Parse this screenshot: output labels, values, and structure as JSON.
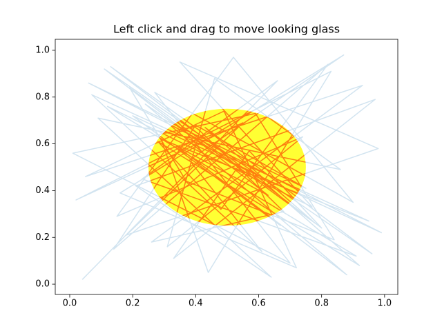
{
  "chart_data": {
    "type": "line",
    "title": "Left click and drag to move looking glass",
    "xlim": [
      -0.046,
      1.042
    ],
    "ylim": [
      -0.044,
      1.047
    ],
    "xticks": [
      {
        "value": 0,
        "label": "0.0"
      },
      0.2,
      0.4,
      0.6,
      0.8,
      {
        "value": 1,
        "label": "1.0"
      }
    ],
    "yticks": [
      {
        "value": 0,
        "label": "0.0"
      },
      0.2,
      0.4,
      0.6,
      0.8,
      {
        "value": 1,
        "label": "1.0"
      }
    ],
    "glass": {
      "center": [
        0.5,
        0.5
      ],
      "radius": 0.25,
      "facecolor": "#ffff33",
      "line_color": "#ff7f0e"
    },
    "series": [
      {
        "color": "#1f77b4",
        "alpha": 0.2,
        "x": [
          0.04,
          0.66,
          0.23,
          0.91,
          0.12,
          0.77,
          0.35,
          0.98,
          0.18,
          0.55,
          0.02,
          0.83,
          0.44,
          0.29,
          0.95,
          0.07,
          0.61,
          0.38,
          0.87,
          0.16,
          0.72,
          0.49,
          0.05,
          0.93,
          0.26,
          0.68,
          0.41,
          0.13,
          0.8,
          0.57,
          0.33,
          0.97,
          0.21,
          0.64,
          0.09,
          0.86,
          0.46,
          0.31,
          0.74,
          0.15,
          0.52,
          0.9,
          0.27,
          0.7,
          0.01,
          0.59,
          0.84,
          0.37,
          0.19,
          0.78,
          0.43,
          0.96,
          0.11,
          0.63,
          0.34,
          0.88,
          0.24,
          0.51,
          0.99,
          0.06,
          0.75,
          0.4,
          0.14,
          0.82,
          0.48,
          0.28,
          0.92,
          0.58,
          0.2,
          0.67
        ],
        "values": [
          0.02,
          0.87,
          0.45,
          0.12,
          0.76,
          0.33,
          0.95,
          0.58,
          0.21,
          0.69,
          0.36,
          0.91,
          0.05,
          0.62,
          0.27,
          0.81,
          0.14,
          0.53,
          0.98,
          0.39,
          0.07,
          0.74,
          0.46,
          0.85,
          0.18,
          0.31,
          0.66,
          0.93,
          0.24,
          0.57,
          0.11,
          0.79,
          0.42,
          0.03,
          0.71,
          0.49,
          0.88,
          0.16,
          0.63,
          0.29,
          0.97,
          0.35,
          0.82,
          0.09,
          0.56,
          0.73,
          0.19,
          0.44,
          0.84,
          0.26,
          0.67,
          0.13,
          0.92,
          0.38,
          0.59,
          0.04,
          0.77,
          0.52,
          0.22,
          0.86,
          0.41,
          0.68,
          0.15,
          0.94,
          0.32,
          0.61,
          0.08,
          0.48,
          0.72,
          0.25
        ]
      }
    ]
  }
}
